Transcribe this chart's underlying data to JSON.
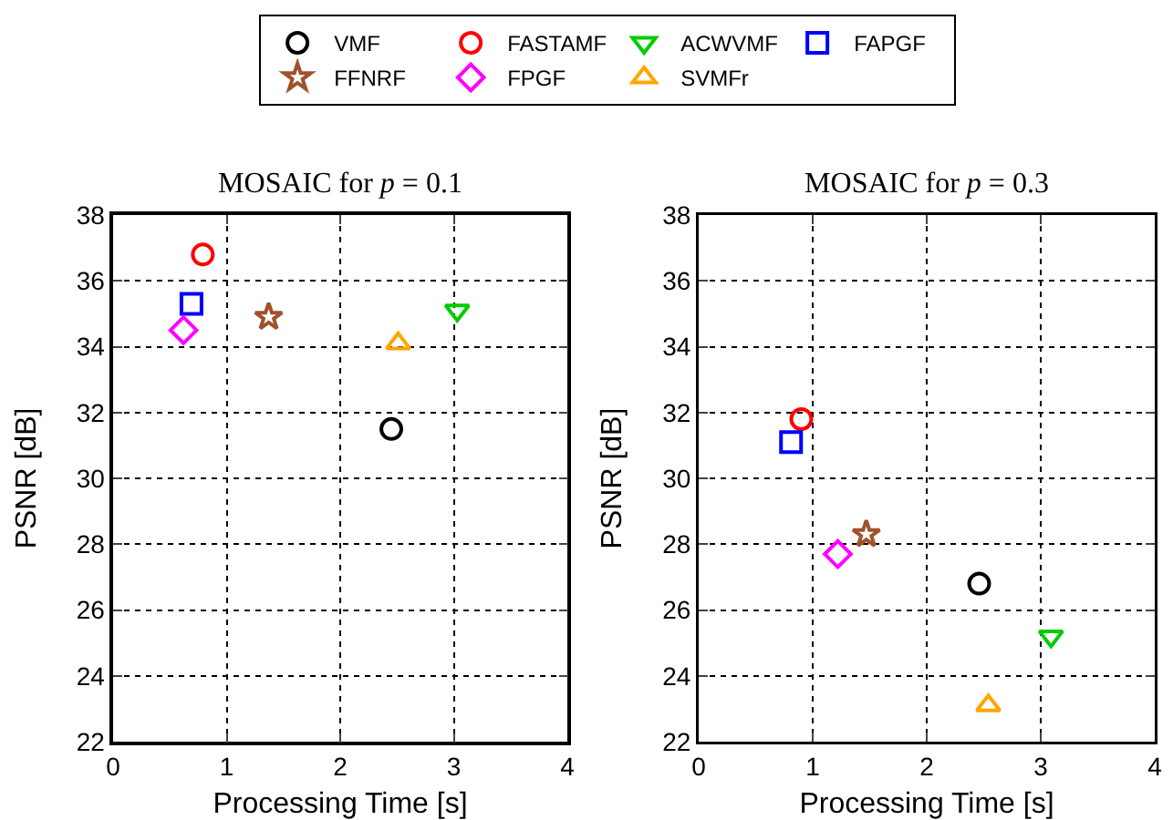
{
  "chart_data": [
    {
      "type": "scatter",
      "title": "MOSAIC for p = 0.1",
      "xlabel": "Processing Time [s]",
      "ylabel": "PSNR [dB]",
      "xlim": [
        0,
        4
      ],
      "xticks": [
        0,
        1,
        2,
        3,
        4
      ],
      "ylim": [
        22,
        38
      ],
      "yticks": [
        22,
        24,
        26,
        28,
        30,
        32,
        34,
        36,
        38
      ],
      "grid": true,
      "legend": "top",
      "series": [
        {
          "name": "VMF",
          "color": "#000000",
          "marker": "circle",
          "x": [
            2.45
          ],
          "values": [
            31.5
          ]
        },
        {
          "name": "FASTAMF",
          "color": "#ff0000",
          "marker": "circle",
          "x": [
            0.79
          ],
          "values": [
            36.8
          ]
        },
        {
          "name": "ACWVMF",
          "color": "#00cc00",
          "marker": "triangle-down",
          "x": [
            3.03
          ],
          "values": [
            35.1
          ]
        },
        {
          "name": "FAPGF",
          "color": "#0000ff",
          "marker": "square",
          "x": [
            0.69
          ],
          "values": [
            35.3
          ]
        },
        {
          "name": "FFNRF",
          "color": "#a0522d",
          "marker": "star",
          "x": [
            1.37
          ],
          "values": [
            34.9
          ]
        },
        {
          "name": "FPGF",
          "color": "#ff00ff",
          "marker": "diamond",
          "x": [
            0.62
          ],
          "values": [
            34.5
          ]
        },
        {
          "name": "SVMFr",
          "color": "#ffa500",
          "marker": "triangle",
          "x": [
            2.51
          ],
          "values": [
            34.1
          ]
        }
      ]
    },
    {
      "type": "scatter",
      "title": "MOSAIC for p = 0.3",
      "xlabel": "Processing Time [s]",
      "ylabel": "PSNR [dB]",
      "xlim": [
        0,
        4
      ],
      "xticks": [
        0,
        1,
        2,
        3,
        4
      ],
      "ylim": [
        22,
        38
      ],
      "yticks": [
        22,
        24,
        26,
        28,
        30,
        32,
        34,
        36,
        38
      ],
      "grid": true,
      "series": [
        {
          "color": "#000000",
          "marker": "circle",
          "x": [
            2.46
          ],
          "values": [
            26.8
          ]
        },
        {
          "color": "#ff0000",
          "marker": "circle",
          "x": [
            0.9
          ],
          "values": [
            31.8
          ]
        },
        {
          "color": "#00cc00",
          "marker": "triangle-down",
          "x": [
            3.09
          ],
          "values": [
            25.2
          ]
        },
        {
          "color": "#0000ff",
          "marker": "square",
          "x": [
            0.81
          ],
          "values": [
            31.1
          ]
        },
        {
          "color": "#a0522d",
          "marker": "star",
          "x": [
            1.47
          ],
          "values": [
            28.3
          ]
        },
        {
          "color": "#ff00ff",
          "marker": "diamond",
          "x": [
            1.22
          ],
          "values": [
            27.7
          ]
        },
        {
          "color": "#ffa500",
          "marker": "triangle",
          "x": [
            2.54
          ],
          "values": [
            23.1
          ]
        }
      ]
    }
  ]
}
